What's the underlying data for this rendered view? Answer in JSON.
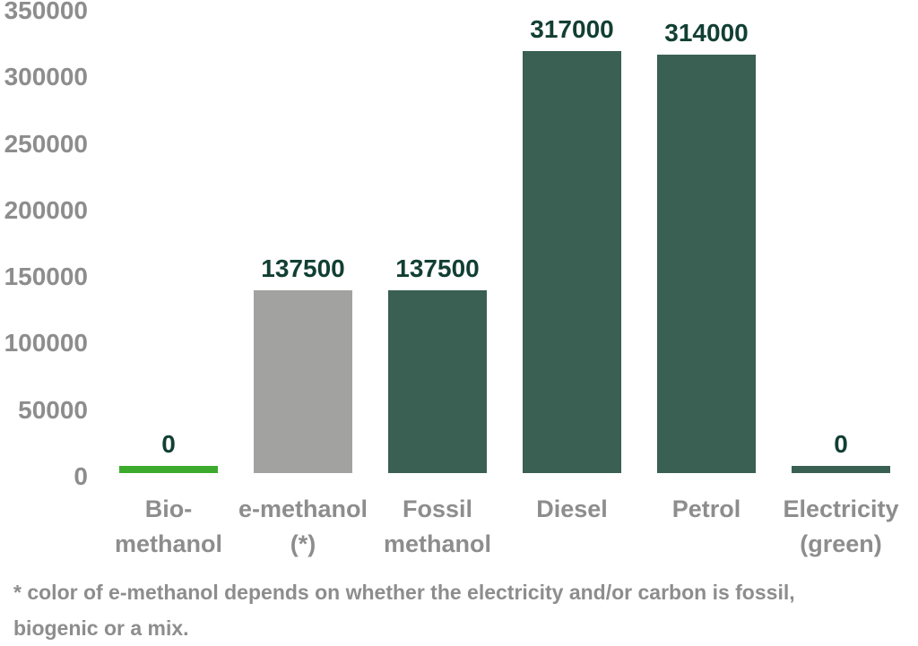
{
  "chart_data": {
    "type": "bar",
    "title": "",
    "xlabel": "",
    "ylabel": "",
    "categories": [
      [
        "Bio-",
        "methanol"
      ],
      [
        "e-methanol",
        "(*)"
      ],
      [
        "Fossil",
        "methanol"
      ],
      [
        "Diesel"
      ],
      [
        "Petrol"
      ],
      [
        "Electricity",
        "(green)"
      ]
    ],
    "values": [
      0,
      137500,
      137500,
      317000,
      314000,
      0
    ],
    "value_labels": [
      "0",
      "137500",
      "137500",
      "317000",
      "314000",
      "0"
    ],
    "bar_names": [
      "bio-methanol",
      "e-methanol",
      "fossil-methanol",
      "diesel",
      "petrol",
      "electricity-green"
    ],
    "bar_colors": [
      "#3cab2d",
      "#a2a2a0",
      "#3a5f53",
      "#3a5f53",
      "#3a5f53",
      "#3a5f53"
    ],
    "ylim": [
      0,
      350000
    ],
    "yticks": [
      0,
      50000,
      100000,
      150000,
      200000,
      250000,
      300000,
      350000
    ],
    "grid": false,
    "legend": null,
    "footnote_lines": [
      "* color of e-methanol depends on whether the electricity and/or carbon is fossil,",
      "biogenic or a mix."
    ],
    "colors": {
      "value_label_text": "#123f33",
      "axis_text": "#8d8d8d",
      "footnote_text": "#8d8d8d",
      "background": "#ffffff",
      "bar_green": "#3cab2d",
      "bar_gray": "#a2a2a0",
      "bar_teal": "#3a5f53"
    }
  }
}
